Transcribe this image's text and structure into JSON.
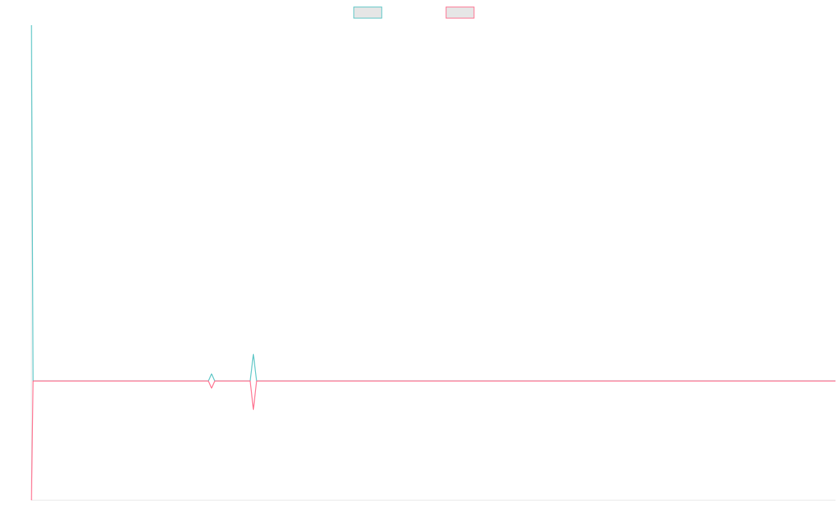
{
  "chart_data": {
    "type": "line",
    "title": "",
    "xlabel": "",
    "ylabel": "",
    "grid": false,
    "legend": "top-center",
    "series": [
      {
        "name": "",
        "color": "#4bc0c0",
        "fill": "#e6e6e6",
        "points": [
          [
            0.0,
            1.0
          ],
          [
            0.002,
            0.0
          ],
          [
            0.22,
            0.0
          ],
          [
            0.224,
            0.02
          ],
          [
            0.228,
            0.0
          ],
          [
            0.272,
            0.0
          ],
          [
            0.276,
            0.075
          ],
          [
            0.28,
            0.0
          ],
          [
            1.0,
            0.0
          ]
        ]
      },
      {
        "name": "",
        "color": "#ff6384",
        "fill": "#e6e6e6",
        "points": [
          [
            0.0,
            -0.335
          ],
          [
            0.002,
            0.0
          ],
          [
            0.22,
            0.0
          ],
          [
            0.224,
            -0.02
          ],
          [
            0.228,
            0.0
          ],
          [
            0.272,
            0.0
          ],
          [
            0.276,
            -0.08
          ],
          [
            0.28,
            0.0
          ],
          [
            1.0,
            0.0
          ]
        ]
      }
    ],
    "xlim": [
      0,
      1
    ],
    "ylim": [
      -0.335,
      1.0
    ]
  }
}
